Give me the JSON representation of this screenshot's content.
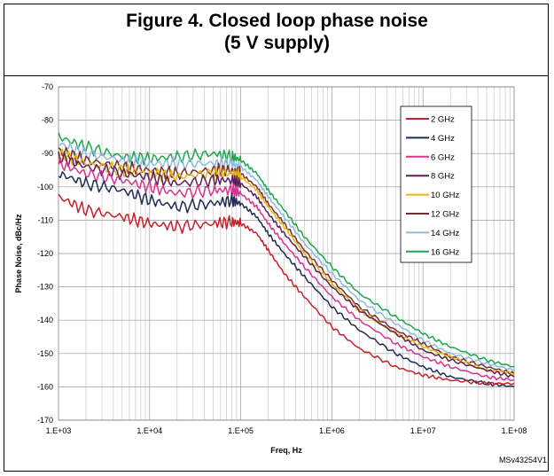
{
  "figure": {
    "title_line1": "Figure 4. Closed loop phase noise",
    "title_line2": "(5 V supply)",
    "code": "MSv43254V1"
  },
  "chart_data": {
    "type": "line",
    "title": "",
    "xlabel": "Freq, Hz",
    "ylabel": "Phase Noise, dBc/Hz",
    "xscale": "log",
    "xlim": [
      1000,
      100000000
    ],
    "ylim": [
      -170,
      -70
    ],
    "xticks": [
      1000,
      10000,
      100000,
      1000000,
      10000000,
      100000000
    ],
    "xtick_labels": [
      "1.E+03",
      "1.E+04",
      "1.E+05",
      "1.E+06",
      "1.E+07",
      "1.E+08"
    ],
    "yticks": [
      -70,
      -80,
      -90,
      -100,
      -110,
      -120,
      -130,
      -140,
      -150,
      -160,
      -170
    ],
    "ytick_labels": [
      "-70",
      "-80",
      "-90",
      "-100",
      "-110",
      "-120",
      "-130",
      "-140",
      "-150",
      "-160",
      "-170"
    ],
    "grid": true,
    "legend_position": "top-right",
    "x": [
      1000,
      2000,
      5000,
      10000,
      20000,
      50000,
      80000,
      100000,
      150000,
      200000,
      300000,
      500000,
      1000000,
      2000000,
      5000000,
      10000000,
      20000000,
      50000000,
      100000000
    ],
    "series": [
      {
        "name": "2 GHz",
        "color": "#c8202a",
        "values": [
          -103,
          -107,
          -109,
          -111,
          -112,
          -111,
          -110.5,
          -111,
          -114,
          -119,
          -126,
          -133,
          -142,
          -148.5,
          -154,
          -156.5,
          -158,
          -159,
          -159
        ]
      },
      {
        "name": "4 GHz",
        "color": "#1f2a57",
        "values": [
          -96,
          -99,
          -101,
          -104,
          -106,
          -105,
          -104,
          -105,
          -109,
          -114,
          -120,
          -127,
          -136,
          -143,
          -150,
          -154,
          -157,
          -159,
          -160
        ]
      },
      {
        "name": "6 GHz",
        "color": "#d6338f",
        "values": [
          -93,
          -96,
          -98,
          -100,
          -102,
          -101,
          -101,
          -102,
          -106,
          -111,
          -117,
          -124,
          -133,
          -140,
          -147,
          -151,
          -154,
          -157,
          -158
        ]
      },
      {
        "name": "8 GHz",
        "color": "#5e1f5a",
        "values": [
          -91,
          -94,
          -96,
          -97,
          -99,
          -98,
          -98,
          -99,
          -103,
          -108,
          -114,
          -121,
          -130,
          -137,
          -144,
          -149,
          -152,
          -155,
          -157
        ]
      },
      {
        "name": "10 GHz",
        "color": "#e6b414",
        "values": [
          -90,
          -93,
          -95,
          -96,
          -97,
          -96,
          -96,
          -97,
          -101,
          -106,
          -112,
          -120,
          -129,
          -137,
          -144,
          -148,
          -151,
          -155,
          -156
        ]
      },
      {
        "name": "12 GHz",
        "color": "#7a2e2e",
        "values": [
          -89,
          -92,
          -94,
          -95,
          -96,
          -95,
          -95,
          -96,
          -100,
          -105,
          -111,
          -119,
          -128,
          -136,
          -143,
          -147,
          -151,
          -154,
          -156
        ]
      },
      {
        "name": "14 GHz",
        "color": "#8cbbe0",
        "values": [
          -87,
          -90,
          -92,
          -93,
          -93,
          -93,
          -93,
          -94,
          -98,
          -103,
          -109,
          -117,
          -126,
          -134,
          -141,
          -146,
          -150,
          -153,
          -155
        ]
      },
      {
        "name": "16 GHz",
        "color": "#1ea650",
        "values": [
          -85,
          -88,
          -91,
          -91.5,
          -91,
          -90,
          -91,
          -92,
          -96,
          -101,
          -107,
          -115,
          -124,
          -132,
          -139,
          -144,
          -148,
          -152,
          -154
        ]
      }
    ]
  }
}
